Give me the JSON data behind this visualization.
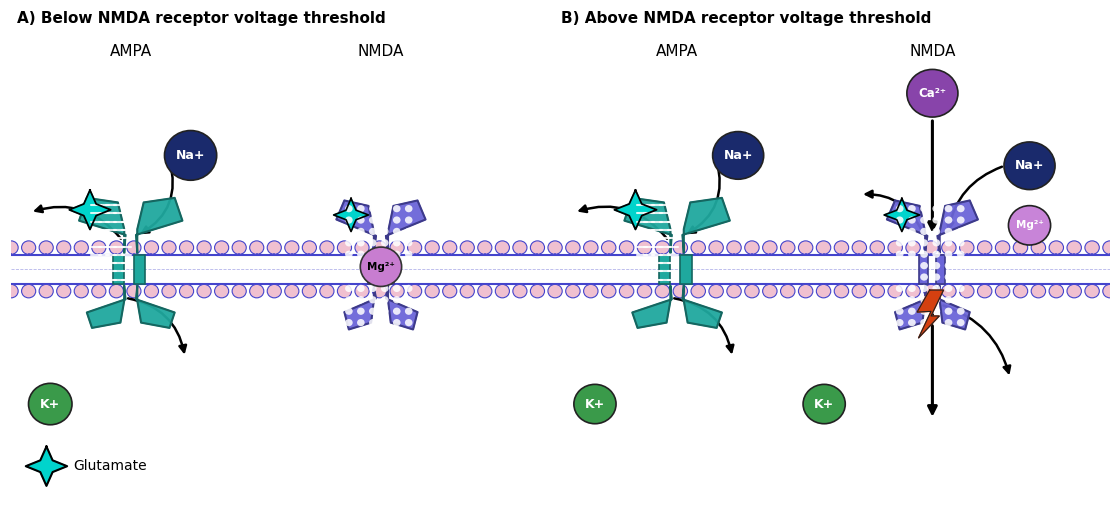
{
  "title_A": "A) Below NMDA receptor voltage threshold",
  "title_B": "B) Above NMDA receptor voltage threshold",
  "label_AMPA": "AMPA",
  "label_NMDA": "NMDA",
  "label_glutamate": "Glutamate",
  "label_Na": "Na+",
  "label_K": "K+",
  "label_Mg": "Mg²⁺",
  "label_Ca": "Ca²⁺",
  "color_teal": "#1fa89e",
  "color_teal_dark": "#156660",
  "color_purple_receptor": "#6b65d8",
  "color_purple_dark": "#3d3a8a",
  "color_navy": "#1a2a6c",
  "color_green": "#3a9a4a",
  "color_mg_circle_a": "#c87dd0",
  "color_ca_circle": "#8844aa",
  "color_mg_circle_b": "#c884d8",
  "color_membrane_line": "#4444cc",
  "color_membrane_circles": "#f0c0d0",
  "color_background": "#ffffff",
  "color_orange": "#d44010",
  "color_teal_star": "#00d4cc",
  "color_star_outline": "#000000"
}
